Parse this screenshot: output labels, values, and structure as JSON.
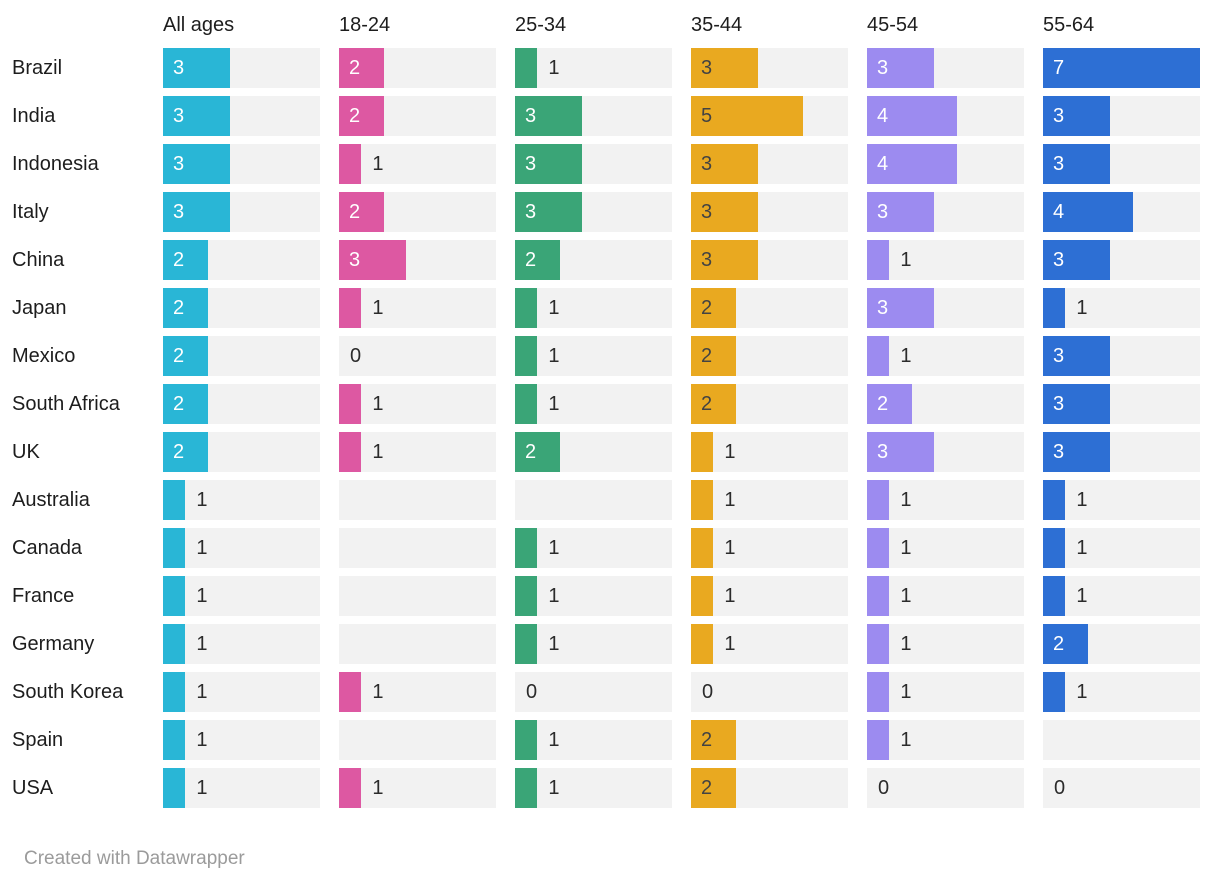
{
  "chart_data": {
    "type": "bar",
    "layout": "small-multiples-horizontal-bars",
    "title": "",
    "xmax": 7,
    "grid": false,
    "value_labels": true,
    "track_color": "#f2f2f2",
    "categories": [
      "Brazil",
      "India",
      "Indonesia",
      "Italy",
      "China",
      "Japan",
      "Mexico",
      "South Africa",
      "UK",
      "Australia",
      "Canada",
      "France",
      "Germany",
      "South Korea",
      "Spain",
      "USA"
    ],
    "series": [
      {
        "name": "All ages",
        "color": "#29b6d6",
        "inside_label_color": "#ffffff",
        "values": [
          3,
          3,
          3,
          3,
          2,
          2,
          2,
          2,
          2,
          1,
          1,
          1,
          1,
          1,
          1,
          1
        ]
      },
      {
        "name": "18-24",
        "color": "#dd58a2",
        "inside_label_color": "#ffffff",
        "values": [
          2,
          2,
          1,
          2,
          3,
          1,
          0,
          1,
          1,
          null,
          null,
          null,
          null,
          1,
          null,
          1
        ]
      },
      {
        "name": "25-34",
        "color": "#3aa577",
        "inside_label_color": "#ffffff",
        "values": [
          1,
          3,
          3,
          3,
          2,
          1,
          1,
          1,
          2,
          null,
          1,
          1,
          1,
          0,
          1,
          1
        ]
      },
      {
        "name": "35-44",
        "color": "#e9a920",
        "inside_label_color": "#434343",
        "values": [
          3,
          5,
          3,
          3,
          3,
          2,
          2,
          2,
          1,
          1,
          1,
          1,
          1,
          0,
          2,
          2
        ]
      },
      {
        "name": "45-54",
        "color": "#9c8bf0",
        "inside_label_color": "#ffffff",
        "values": [
          3,
          4,
          4,
          3,
          1,
          3,
          1,
          2,
          3,
          1,
          1,
          1,
          1,
          1,
          1,
          0
        ]
      },
      {
        "name": "55-64",
        "color": "#2d6fd4",
        "inside_label_color": "#ffffff",
        "values": [
          7,
          3,
          3,
          4,
          3,
          1,
          3,
          3,
          3,
          1,
          1,
          1,
          2,
          1,
          null,
          0
        ]
      }
    ]
  },
  "footer": {
    "credit": "Created with Datawrapper"
  },
  "colors": {
    "background": "#ffffff",
    "track": "#f2f2f2",
    "header_text": "#1d1d1d",
    "row_label_text": "#1d1d1d",
    "outside_value_text": "#2b2b2b",
    "footer_text": "#9b9b9b"
  }
}
